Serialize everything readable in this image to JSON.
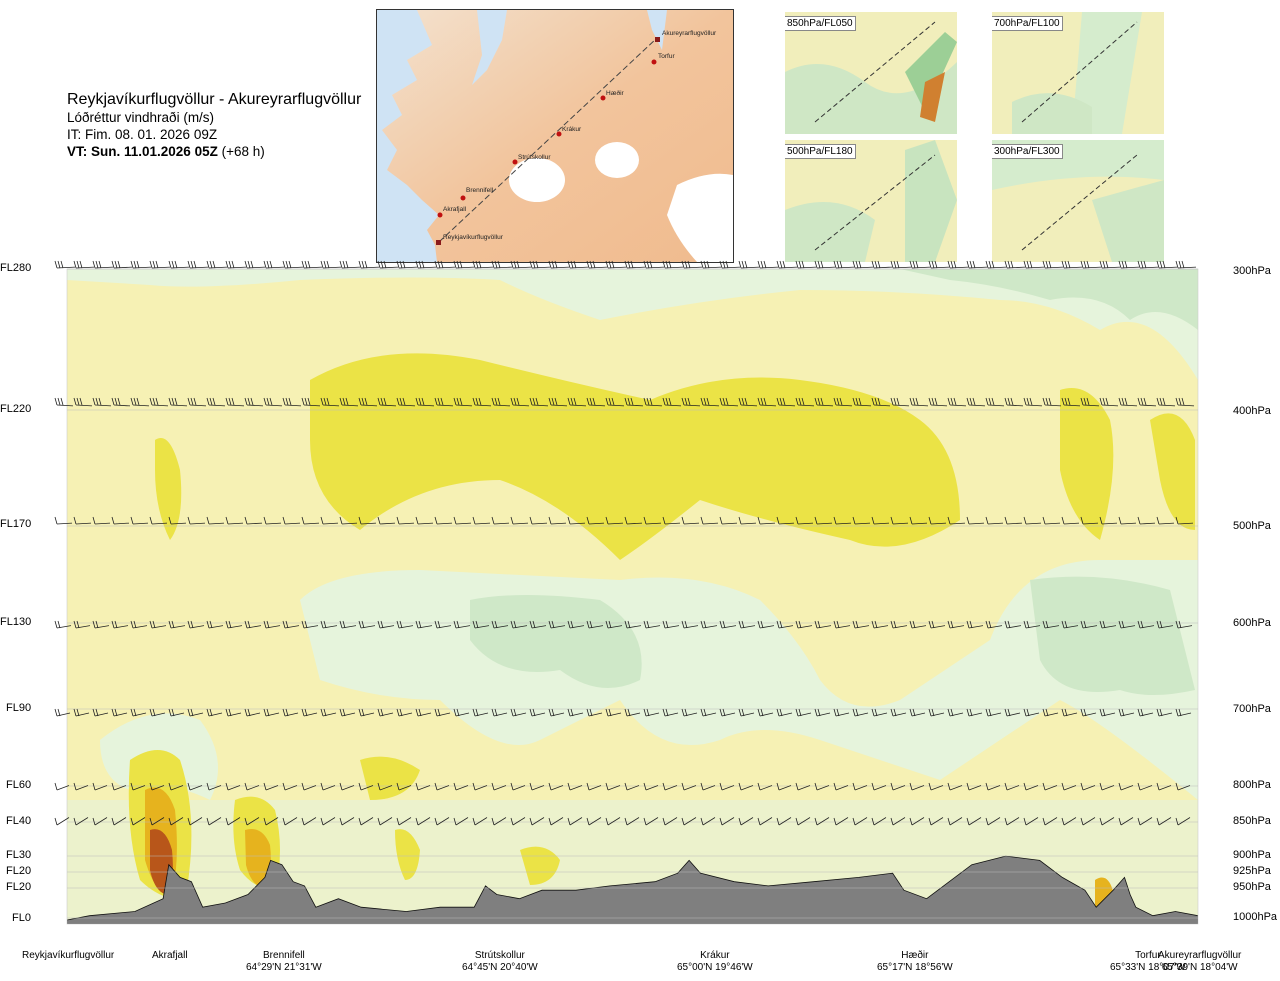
{
  "header": {
    "route": "Reykjavíkurflugvöllur - Akureyrarflugvöllur",
    "quantity": "Lóðréttur vindhraði (m/s)",
    "issue_time": "IT: Fim. 08. 01. 2026 09Z",
    "valid_prefix": "VT: Sun. 11.01.2026 05Z",
    "valid_offset": "(+68 h)"
  },
  "route_map": {
    "places": [
      "Akureyrarflugvöllur",
      "Torfur",
      "Hæðir",
      "Krákur",
      "Strútskollur",
      "Brennifell",
      "Akrafjall",
      "Reykjavíkurflugvöllur"
    ]
  },
  "mini_maps": [
    {
      "label": "850hPa/FL050"
    },
    {
      "label": "700hPa/FL100"
    },
    {
      "label": "500hPa/FL180"
    },
    {
      "label": "300hPa/FL300"
    }
  ],
  "colors": {
    "strong_down": "#cfe8c8",
    "down": "#e6f4dc",
    "neutral": "#f6f1b4",
    "up": "#ebe346",
    "strong_up": "#e6b31e",
    "very_strong_up": "#b8561a",
    "terrain": "#7f7f7f"
  },
  "chart_data": {
    "type": "heatmap",
    "title": "Reykjavíkurflugvöllur - Akureyrarflugvöllur",
    "variable": "Lóðréttur vindhraði (m/s)",
    "flight_levels": [
      {
        "fl": "FL280",
        "hpa": "300hPa"
      },
      {
        "fl": "FL220",
        "hpa": "400hPa"
      },
      {
        "fl": "FL170",
        "hpa": "500hPa"
      },
      {
        "fl": "FL130",
        "hpa": "600hPa"
      },
      {
        "fl": "FL90",
        "hpa": "700hPa"
      },
      {
        "fl": "FL60",
        "hpa": "800hPa"
      },
      {
        "fl": "FL40",
        "hpa": "850hPa"
      },
      {
        "fl": "FL30",
        "hpa": "900hPa"
      },
      {
        "fl": "FL20",
        "hpa": "925hPa"
      },
      {
        "fl": "FL20",
        "hpa": "950hPa"
      },
      {
        "fl": "FL0",
        "hpa": "1000hPa"
      }
    ],
    "x_locations": [
      {
        "name": "Reykjavíkurflugvöllur",
        "coord": ""
      },
      {
        "name": "Akrafjall",
        "coord": ""
      },
      {
        "name": "Brennifell",
        "coord": "64°29'N 21°31'W"
      },
      {
        "name": "Strútskollur",
        "coord": "64°45'N 20°40'W"
      },
      {
        "name": "Krákur",
        "coord": "65°00'N 19°46'W"
      },
      {
        "name": "Hæðir",
        "coord": "65°17'N 18°56'W"
      },
      {
        "name": "Torfur",
        "coord": "65°33'N 18°07'W"
      },
      {
        "name": "Akureyrarflugvöllur",
        "coord": "65°39'N 18°04'W"
      }
    ],
    "x_range": [
      0,
      1
    ],
    "location_positions": [
      0,
      0.09,
      0.185,
      0.376,
      0.553,
      0.726,
      0.933,
      1.0
    ],
    "terrain_profile": [
      [
        0,
        0
      ],
      [
        0.02,
        0.01
      ],
      [
        0.06,
        0.02
      ],
      [
        0.085,
        0.05
      ],
      [
        0.09,
        0.13
      ],
      [
        0.1,
        0.1
      ],
      [
        0.11,
        0.09
      ],
      [
        0.12,
        0.03
      ],
      [
        0.14,
        0.04
      ],
      [
        0.16,
        0.06
      ],
      [
        0.175,
        0.1
      ],
      [
        0.18,
        0.14
      ],
      [
        0.19,
        0.13
      ],
      [
        0.2,
        0.09
      ],
      [
        0.21,
        0.08
      ],
      [
        0.22,
        0.03
      ],
      [
        0.24,
        0.05
      ],
      [
        0.26,
        0.03
      ],
      [
        0.3,
        0.02
      ],
      [
        0.33,
        0.03
      ],
      [
        0.36,
        0.03
      ],
      [
        0.37,
        0.08
      ],
      [
        0.38,
        0.06
      ],
      [
        0.4,
        0.05
      ],
      [
        0.42,
        0.07
      ],
      [
        0.45,
        0.07
      ],
      [
        0.48,
        0.08
      ],
      [
        0.52,
        0.09
      ],
      [
        0.54,
        0.11
      ],
      [
        0.55,
        0.14
      ],
      [
        0.56,
        0.11
      ],
      [
        0.59,
        0.09
      ],
      [
        0.62,
        0.08
      ],
      [
        0.66,
        0.09
      ],
      [
        0.7,
        0.1
      ],
      [
        0.73,
        0.11
      ],
      [
        0.74,
        0.07
      ],
      [
        0.76,
        0.05
      ],
      [
        0.78,
        0.09
      ],
      [
        0.8,
        0.13
      ],
      [
        0.83,
        0.15
      ],
      [
        0.86,
        0.14
      ],
      [
        0.88,
        0.1
      ],
      [
        0.9,
        0.07
      ],
      [
        0.91,
        0.03
      ],
      [
        0.925,
        0.07
      ],
      [
        0.935,
        0.1
      ],
      [
        0.94,
        0.06
      ],
      [
        0.945,
        0.03
      ],
      [
        0.96,
        0.01
      ],
      [
        0.98,
        0.02
      ],
      [
        1.0,
        0.01
      ]
    ],
    "legend_position": "none"
  }
}
